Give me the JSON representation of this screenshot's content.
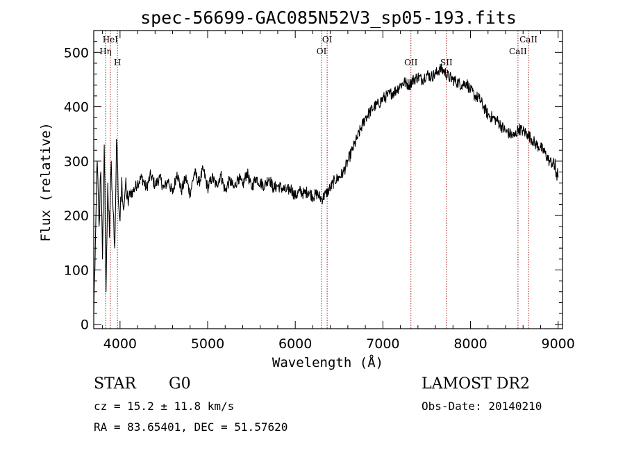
{
  "chart_data": {
    "type": "line",
    "title": "spec-56699-GAC085N52V3_sp05-193.fits",
    "xlabel": "Wavelength (Å)",
    "ylabel": "Flux (relative)",
    "xlim": [
      3700,
      9050
    ],
    "ylim": [
      -8,
      540
    ],
    "x_ticks": [
      4000,
      5000,
      6000,
      7000,
      8000,
      9000
    ],
    "y_ticks": [
      0,
      100,
      200,
      300,
      400,
      500
    ],
    "grid": false,
    "series": [
      {
        "x": [
          3700,
          3720,
          3740,
          3760,
          3780,
          3800,
          3820,
          3840,
          3860,
          3880,
          3900,
          3920,
          3940,
          3960,
          3980,
          4000,
          4020,
          4040,
          4060,
          4080,
          4100,
          4150,
          4200,
          4250,
          4300,
          4350,
          4400,
          4450,
          4500,
          4550,
          4600,
          4650,
          4700,
          4750,
          4800,
          4850,
          4900,
          4950,
          5000,
          5050,
          5100,
          5150,
          5200,
          5250,
          5300,
          5350,
          5400,
          5450,
          5500,
          5550,
          5600,
          5650,
          5700,
          5750,
          5800,
          5850,
          5900,
          5950,
          6000,
          6050,
          6100,
          6150,
          6200,
          6250,
          6300,
          6350,
          6400,
          6450,
          6500,
          6550,
          6600,
          6650,
          6700,
          6750,
          6800,
          6850,
          6900,
          6950,
          7000,
          7050,
          7100,
          7150,
          7200,
          7250,
          7300,
          7350,
          7400,
          7450,
          7500,
          7550,
          7600,
          7650,
          7700,
          7750,
          7800,
          7850,
          7900,
          7950,
          8000,
          8050,
          8100,
          8150,
          8200,
          8250,
          8300,
          8350,
          8400,
          8450,
          8500,
          8550,
          8600,
          8650,
          8700,
          8750,
          8800,
          8850,
          8900,
          8950,
          8980,
          9000
        ],
        "y": [
          20,
          160,
          300,
          180,
          280,
          120,
          330,
          60,
          260,
          160,
          300,
          210,
          140,
          340,
          230,
          190,
          270,
          210,
          250,
          230,
          235,
          245,
          260,
          270,
          250,
          275,
          255,
          270,
          250,
          265,
          240,
          280,
          245,
          270,
          240,
          280,
          260,
          285,
          250,
          270,
          255,
          275,
          245,
          265,
          250,
          270,
          255,
          280,
          250,
          270,
          260,
          255,
          270,
          250,
          255,
          250,
          245,
          250,
          235,
          245,
          240,
          245,
          235,
          240,
          230,
          240,
          250,
          265,
          270,
          280,
          300,
          320,
          340,
          360,
          380,
          390,
          400,
          405,
          415,
          420,
          425,
          430,
          440,
          445,
          440,
          450,
          455,
          450,
          460,
          455,
          460,
          470,
          465,
          455,
          450,
          445,
          440,
          445,
          430,
          420,
          415,
          400,
          385,
          380,
          375,
          365,
          355,
          350,
          345,
          360,
          355,
          350,
          340,
          330,
          325,
          315,
          300,
          295,
          280,
          270
        ]
      }
    ],
    "line_markers": [
      {
        "label": "Hη",
        "x": 3835,
        "row": 2
      },
      {
        "label": "HeI",
        "x": 3889,
        "row": 1
      },
      {
        "label": "H",
        "x": 3970,
        "row": 3
      },
      {
        "label": "OI",
        "x": 6300,
        "row": 2
      },
      {
        "label": "OI",
        "x": 6364,
        "row": 1
      },
      {
        "label": "OII",
        "x": 7320,
        "row": 3
      },
      {
        "label": "SII",
        "x": 7725,
        "row": 3
      },
      {
        "label": "CaII",
        "x": 8542,
        "row": 2
      },
      {
        "label": "CaII",
        "x": 8662,
        "row": 1
      }
    ]
  },
  "footer": {
    "object_class": "STAR",
    "subclass": "G0",
    "survey": "LAMOST DR2",
    "redshift": "cz = 15.2 ± 11.8 km/s",
    "obs_date": "Obs-Date: 20140210",
    "coordinates": "RA =  83.65401, DEC =  51.57620"
  },
  "colors": {
    "spectrum": "#000000",
    "marker_line": "#a01818",
    "axis": "#000000"
  }
}
